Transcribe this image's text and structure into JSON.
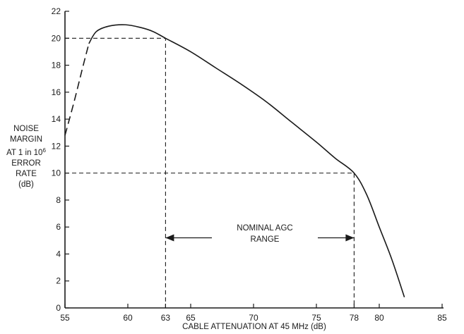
{
  "chart_data": {
    "type": "line",
    "title": "",
    "xlabel": "CABLE ATTENUATION AT 45 MHz (dB)",
    "ylabel_lines": [
      "NOISE",
      "MARGIN",
      "AT 1 in 10",
      "ERROR",
      "RATE",
      "(dB)"
    ],
    "ylabel_superscript": "6",
    "xlim": [
      55,
      85
    ],
    "ylim": [
      0,
      22
    ],
    "x_ticks": [
      55,
      60,
      63,
      65,
      70,
      75,
      78,
      80,
      85
    ],
    "y_ticks": [
      0,
      2,
      4,
      6,
      8,
      10,
      12,
      14,
      16,
      18,
      20,
      22
    ],
    "grid": false,
    "series": [
      {
        "style": "dashed",
        "x": [
          55.0,
          55.7,
          56.4,
          56.9
        ],
        "y": [
          12.8,
          15.2,
          17.8,
          19.6
        ]
      },
      {
        "style": "solid",
        "x": [
          56.9,
          57.5,
          58.5,
          59.8,
          61.0,
          62.0,
          63.0,
          65.0,
          67.0,
          69.0,
          71.0,
          73.0,
          75.0,
          76.5,
          78.0,
          79.0,
          80.0,
          81.0,
          82.0
        ],
        "y": [
          19.6,
          20.5,
          20.9,
          21.0,
          20.8,
          20.5,
          20.0,
          19.0,
          17.8,
          16.6,
          15.3,
          13.8,
          12.3,
          11.1,
          10.0,
          8.4,
          6.0,
          3.6,
          0.8
        ]
      }
    ],
    "reference_lines": [
      {
        "x": 63,
        "y": 20
      },
      {
        "x": 78,
        "y": 10
      }
    ],
    "annotation": {
      "lines": [
        "NOMINAL AGC",
        "RANGE"
      ],
      "x_from": 63,
      "x_to": 78,
      "y": 5.2
    }
  }
}
